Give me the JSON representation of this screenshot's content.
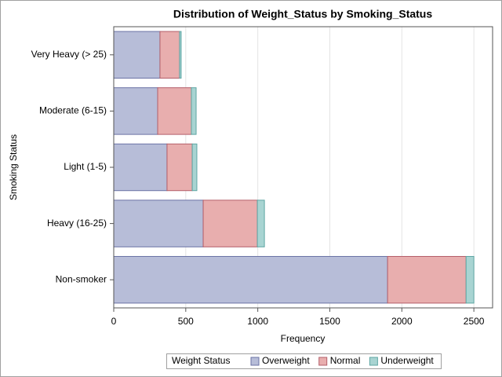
{
  "chart_data": {
    "type": "stacked-barh",
    "title": "Distribution of Weight_Status by Smoking_Status",
    "x_label": "Frequency",
    "y_label": "Smoking Status",
    "legend_title": "Weight Status",
    "categories": [
      "Very Heavy (> 25)",
      "Moderate (6-15)",
      "Light (1-5)",
      "Heavy (16-25)",
      "Non-smoker"
    ],
    "series": [
      {
        "name": "Overweight",
        "color": "#b7bdd8",
        "values": [
          321,
          305,
          370,
          621,
          1901
        ]
      },
      {
        "name": "Normal",
        "color": "#e8aeae",
        "values": [
          136,
          234,
          175,
          376,
          545
        ]
      },
      {
        "name": "Underweight",
        "color": "#a8d4d2",
        "values": [
          11,
          33,
          32,
          49,
          54
        ]
      }
    ],
    "xlim": [
      0,
      2630
    ],
    "xticks": [
      0,
      500,
      1000,
      1500,
      2000,
      2500
    ],
    "grid": true
  }
}
